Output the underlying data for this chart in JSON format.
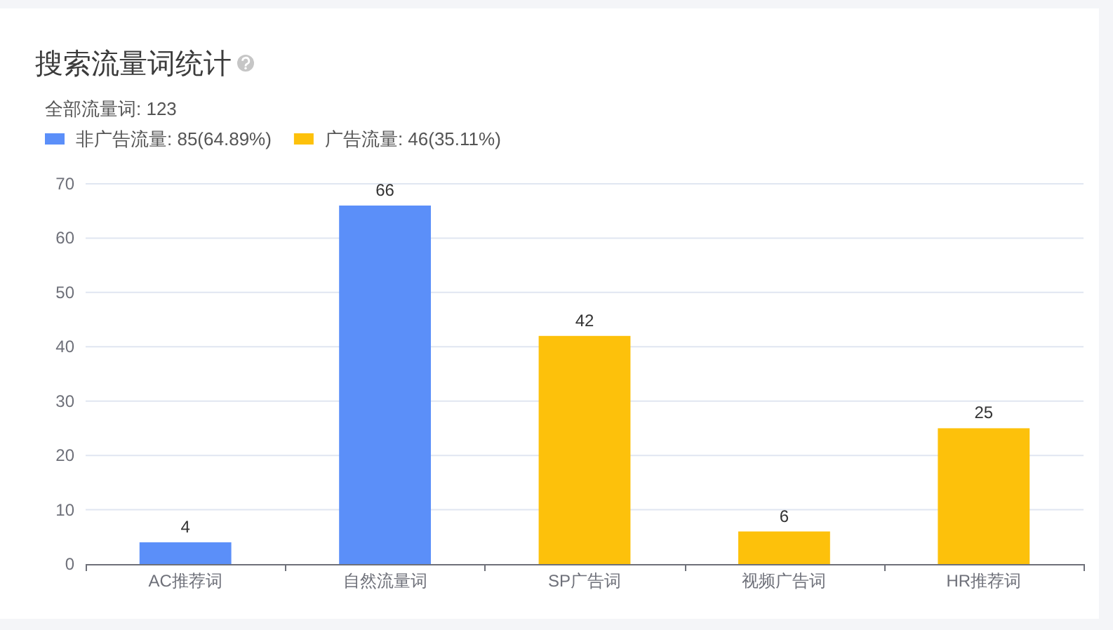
{
  "chart_data": {
    "type": "bar",
    "title": "搜索流量词统计",
    "subtitle": "全部流量词: 123",
    "categories": [
      "AC推荐词",
      "自然流量词",
      "SP广告词",
      "视频广告词",
      "HR推荐词"
    ],
    "stacked": true,
    "series": [
      {
        "name": "非广告流量: 85(64.89%)",
        "color": "#5b8ff9",
        "values": [
          4,
          66,
          null,
          null,
          null
        ]
      },
      {
        "name": "广告流量: 46(35.11%)",
        "color": "#fdc10b",
        "values": [
          null,
          null,
          42,
          6,
          25
        ]
      }
    ],
    "ylim": [
      0,
      70
    ],
    "yticks": [
      0,
      10,
      20,
      30,
      40,
      50,
      60,
      70
    ],
    "grid": "y",
    "legend": "top left",
    "data_labels": true
  }
}
